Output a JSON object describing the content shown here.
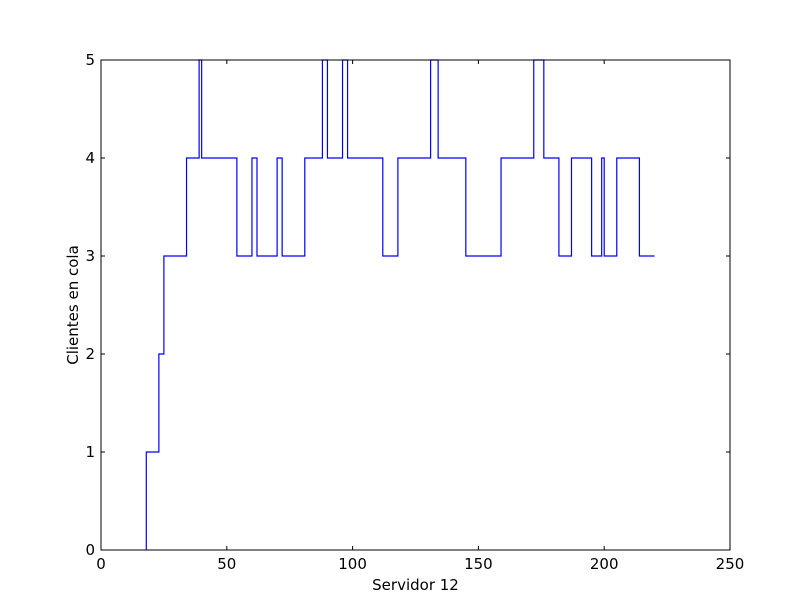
{
  "chart_data": {
    "type": "line",
    "drawstyle": "steps-post",
    "xlabel": "Servidor 12",
    "ylabel": "Clientes en cola",
    "xlim": [
      0,
      250
    ],
    "ylim": [
      0,
      5
    ],
    "xticks": [
      0,
      50,
      100,
      150,
      200,
      250
    ],
    "yticks": [
      0,
      1,
      2,
      3,
      4,
      5
    ],
    "grid": false,
    "series": [
      {
        "color": "#0000ff",
        "x": [
          18,
          23,
          25,
          34,
          39,
          40,
          54,
          60,
          62,
          70,
          72,
          81,
          88,
          90,
          96,
          98,
          112,
          118,
          131,
          134,
          145,
          159,
          172,
          176,
          182,
          187,
          195,
          199,
          200,
          205,
          214,
          220
        ],
        "y": [
          1,
          2,
          3,
          4,
          5,
          4,
          3,
          4,
          3,
          4,
          3,
          4,
          5,
          4,
          5,
          4,
          3,
          4,
          5,
          4,
          3,
          4,
          5,
          4,
          3,
          4,
          3,
          4,
          3,
          4,
          3,
          3
        ]
      }
    ]
  }
}
